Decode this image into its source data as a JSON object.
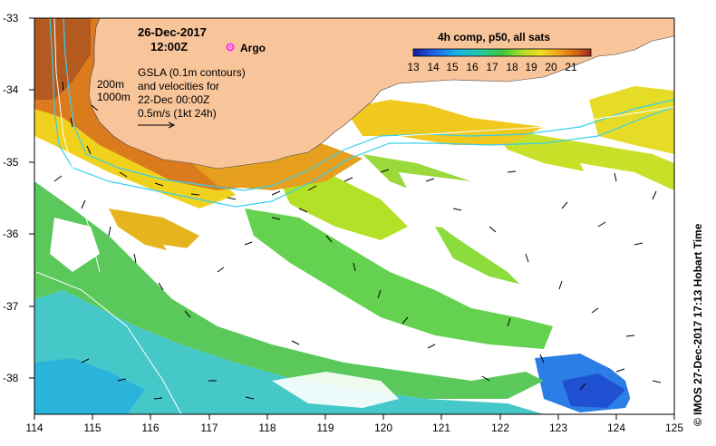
{
  "header": {
    "date": "26-Dec-2017",
    "time": "12:00Z",
    "argo_label": "Argo"
  },
  "annotations": {
    "gsla_lines": [
      "GSLA (0.1m contours)",
      "and velocities for",
      "22-Dec 00:00Z"
    ],
    "scale_label": "0.5m/s (1kt 24h)",
    "depth_200": "200m",
    "depth_1000": "1000m"
  },
  "colorbar": {
    "title": "4h comp, p50, all sats",
    "ticks": [
      "13",
      "14",
      "15",
      "16",
      "17",
      "18",
      "19",
      "20",
      "21"
    ]
  },
  "axes": {
    "x_ticks": [
      "114",
      "115",
      "116",
      "117",
      "118",
      "119",
      "120",
      "121",
      "122",
      "123",
      "124",
      "125"
    ],
    "y_ticks": [
      "-33",
      "-34",
      "-35",
      "-36",
      "-37",
      "-38"
    ]
  },
  "credit": "© IMOS 27-Dec-2017 17:13 Hobart Time",
  "colors": {
    "land": "#f8c49a",
    "ocean_bg": "#ffffff",
    "isobath": "#35d0ee",
    "argo": "#ff30ff"
  }
}
